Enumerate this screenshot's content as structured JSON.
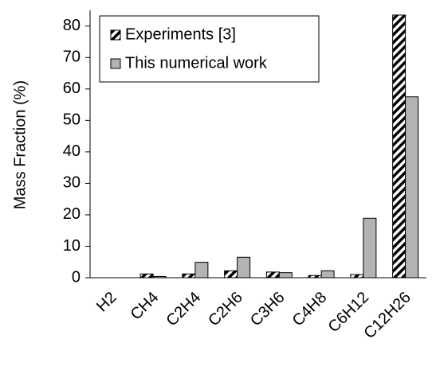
{
  "chart_data": {
    "type": "bar",
    "y_label": "Mass Fraction (%)",
    "categories": [
      "H2",
      "CH4",
      "C2H4",
      "C2H6",
      "C3H6",
      "C4H8",
      "C6H12",
      "C12H26"
    ],
    "series": [
      {
        "name": "Experiments [3]",
        "color": "#000000",
        "hatch": true,
        "values": [
          0,
          1.2,
          1.2,
          2.2,
          1.8,
          0.7,
          1.0,
          83.5
        ]
      },
      {
        "name": "This numerical work",
        "color": "#b3b3b3",
        "hatch": false,
        "values": [
          0,
          0.4,
          4.9,
          6.5,
          1.6,
          2.2,
          18.9,
          57.5
        ]
      }
    ],
    "ylim": [
      0,
      85
    ],
    "yticks": [
      0,
      10,
      20,
      30,
      40,
      50,
      60,
      70,
      80
    ],
    "grid": false,
    "legend": "top-left"
  }
}
